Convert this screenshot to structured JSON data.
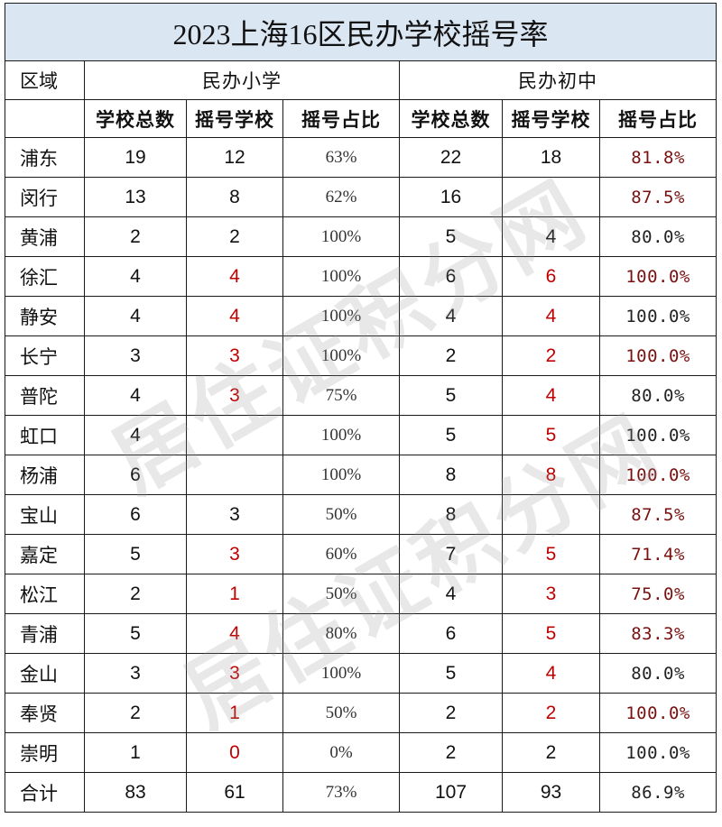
{
  "title": "2023上海16区民办学校摇号率",
  "headers": {
    "region": "区域",
    "primary": "民办小学",
    "middle": "民办初中",
    "total_schools": "学校总数",
    "lottery_schools": "摇号学校",
    "lottery_ratio": "摇号占比"
  },
  "rows": [
    {
      "region": "浦东",
      "p_total": "19",
      "p_lottery": "12",
      "p_ratio": "63%",
      "m_total": "22",
      "m_lottery": "18",
      "m_ratio": "81.8%"
    },
    {
      "region": "闵行",
      "p_total": "13",
      "p_lottery": "8",
      "p_ratio": "62%",
      "m_total": "16",
      "m_lottery": "",
      "m_ratio": "87.5%"
    },
    {
      "region": "黄浦",
      "p_total": "2",
      "p_lottery": "2",
      "p_ratio": "100%",
      "m_total": "5",
      "m_lottery": "4",
      "m_ratio": "80.0%"
    },
    {
      "region": "徐汇",
      "p_total": "4",
      "p_lottery": "4",
      "p_ratio": "100%",
      "m_total": "6",
      "m_lottery": "6",
      "m_ratio": "100.0%"
    },
    {
      "region": "静安",
      "p_total": "4",
      "p_lottery": "4",
      "p_ratio": "100%",
      "m_total": "4",
      "m_lottery": "4",
      "m_ratio": "100.0%"
    },
    {
      "region": "长宁",
      "p_total": "3",
      "p_lottery": "3",
      "p_ratio": "100%",
      "m_total": "2",
      "m_lottery": "2",
      "m_ratio": "100.0%"
    },
    {
      "region": "普陀",
      "p_total": "4",
      "p_lottery": "3",
      "p_ratio": "75%",
      "m_total": "5",
      "m_lottery": "4",
      "m_ratio": "80.0%"
    },
    {
      "region": "虹口",
      "p_total": "4",
      "p_lottery": "",
      "p_ratio": "100%",
      "m_total": "5",
      "m_lottery": "5",
      "m_ratio": "100.0%"
    },
    {
      "region": "杨浦",
      "p_total": "6",
      "p_lottery": "",
      "p_ratio": "100%",
      "m_total": "8",
      "m_lottery": "8",
      "m_ratio": "100.0%"
    },
    {
      "region": "宝山",
      "p_total": "6",
      "p_lottery": "3",
      "p_ratio": "50%",
      "m_total": "8",
      "m_lottery": "",
      "m_ratio": "87.5%"
    },
    {
      "region": "嘉定",
      "p_total": "5",
      "p_lottery": "3",
      "p_ratio": "60%",
      "m_total": "7",
      "m_lottery": "5",
      "m_ratio": "71.4%"
    },
    {
      "region": "松江",
      "p_total": "2",
      "p_lottery": "1",
      "p_ratio": "50%",
      "m_total": "4",
      "m_lottery": "3",
      "m_ratio": "75.0%"
    },
    {
      "region": "青浦",
      "p_total": "5",
      "p_lottery": "4",
      "p_ratio": "80%",
      "m_total": "6",
      "m_lottery": "5",
      "m_ratio": "83.3%"
    },
    {
      "region": "金山",
      "p_total": "3",
      "p_lottery": "3",
      "p_ratio": "100%",
      "m_total": "5",
      "m_lottery": "4",
      "m_ratio": "80.0%"
    },
    {
      "region": "奉贤",
      "p_total": "2",
      "p_lottery": "1",
      "p_ratio": "50%",
      "m_total": "2",
      "m_lottery": "2",
      "m_ratio": "100.0%"
    },
    {
      "region": "崇明",
      "p_total": "1",
      "p_lottery": "0",
      "p_ratio": "0%",
      "m_total": "2",
      "m_lottery": "2",
      "m_ratio": "100.0%"
    }
  ],
  "total": {
    "region": "合计",
    "p_total": "83",
    "p_lottery": "61",
    "p_ratio": "73%",
    "m_total": "107",
    "m_lottery": "93",
    "m_ratio": "86.9%"
  },
  "watermark": "居住证积分网",
  "colors": {
    "title_bg": "#dbe6f3",
    "red": "#c00000",
    "dark_red": "#7a1010",
    "border": "#1a1a1a"
  }
}
